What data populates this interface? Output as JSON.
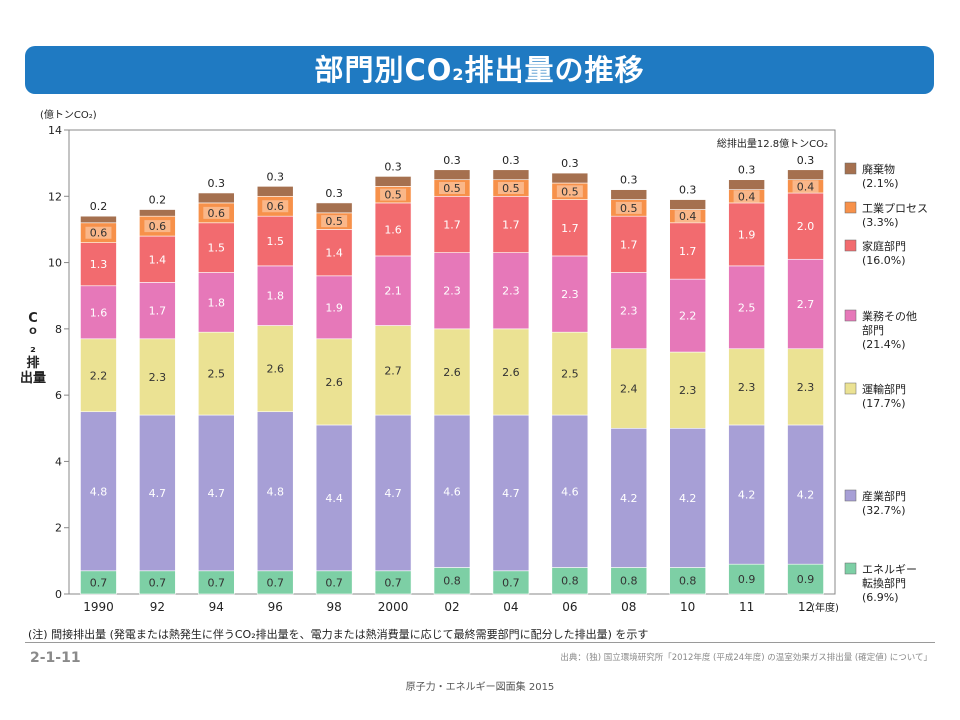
{
  "title_main": "部門別CO",
  "title_sub": "2",
  "title_rest": "排出量の推移",
  "chart_data": {
    "type": "bar",
    "stacked": true,
    "y_unit": "(億トンCO₂)",
    "ylabel": "CO₂排出量",
    "ylim": [
      0,
      14
    ],
    "yticks": [
      0,
      2,
      4,
      6,
      8,
      10,
      12,
      14
    ],
    "categories": [
      "1990",
      "92",
      "94",
      "96",
      "98",
      "2000",
      "02",
      "04",
      "06",
      "08",
      "10",
      "11",
      "12"
    ],
    "x_unit": "(年度)",
    "total_label": "総排出量12.8億トンCO₂",
    "totals": [
      11.4,
      11.6,
      12.1,
      12.3,
      11.8,
      12.6,
      12.8,
      12.8,
      12.7,
      12.2,
      11.9,
      12.5,
      12.8
    ],
    "series": [
      {
        "name": "エネルギー転換部門",
        "share": "(6.9%)",
        "color": "#7dcfa5",
        "label_color": "#333333",
        "values": [
          0.7,
          0.7,
          0.7,
          0.7,
          0.7,
          0.7,
          0.8,
          0.7,
          0.8,
          0.8,
          0.8,
          0.9,
          0.9
        ]
      },
      {
        "name": "産業部門",
        "share": "(32.7%)",
        "color": "#a79fd6",
        "label_color": "#ffffff",
        "values": [
          4.8,
          4.7,
          4.7,
          4.8,
          4.4,
          4.7,
          4.6,
          4.7,
          4.6,
          4.2,
          4.2,
          4.2,
          4.2
        ]
      },
      {
        "name": "運輸部門",
        "share": "(17.7%)",
        "color": "#ebe293",
        "label_color": "#333333",
        "values": [
          2.2,
          2.3,
          2.5,
          2.6,
          2.6,
          2.7,
          2.6,
          2.6,
          2.5,
          2.4,
          2.3,
          2.3,
          2.3
        ]
      },
      {
        "name": "業務その他部門",
        "share": "(21.4%)",
        "color": "#e678b9",
        "label_color": "#ffffff",
        "values": [
          1.6,
          1.7,
          1.8,
          1.8,
          1.9,
          2.1,
          2.3,
          2.3,
          2.3,
          2.3,
          2.2,
          2.5,
          2.7
        ]
      },
      {
        "name": "家庭部門",
        "share": "(16.0%)",
        "color": "#f26b6f",
        "label_color": "#ffffff",
        "values": [
          1.3,
          1.4,
          1.5,
          1.5,
          1.4,
          1.6,
          1.7,
          1.7,
          1.7,
          1.7,
          1.7,
          1.9,
          2.0
        ]
      },
      {
        "name": "工業プロセス",
        "share": "(3.3%)",
        "color": "#f7914a",
        "label_color": "#333333",
        "values": [
          0.6,
          0.6,
          0.6,
          0.6,
          0.5,
          0.5,
          0.5,
          0.5,
          0.5,
          0.5,
          0.4,
          0.4,
          0.4
        ]
      },
      {
        "name": "廃棄物",
        "share": "(2.1%)",
        "color": "#a5704f",
        "label_color": "#333333",
        "values": [
          0.2,
          0.2,
          0.3,
          0.3,
          0.3,
          0.3,
          0.3,
          0.3,
          0.3,
          0.3,
          0.3,
          0.3,
          0.3
        ]
      }
    ]
  },
  "note": "(注) 間接排出量 (発電または熱発生に伴うCO₂排出量を、電力または熱消費量に応じて最終需要部門に配分した排出量) を示す",
  "figure_number": "2-1-11",
  "source": "出典：(独) 国立環境研究所「2012年度 (平成24年度) の温室効果ガス排出量 (確定値) について」",
  "footer": "原子力・エネルギー図面集 2015"
}
